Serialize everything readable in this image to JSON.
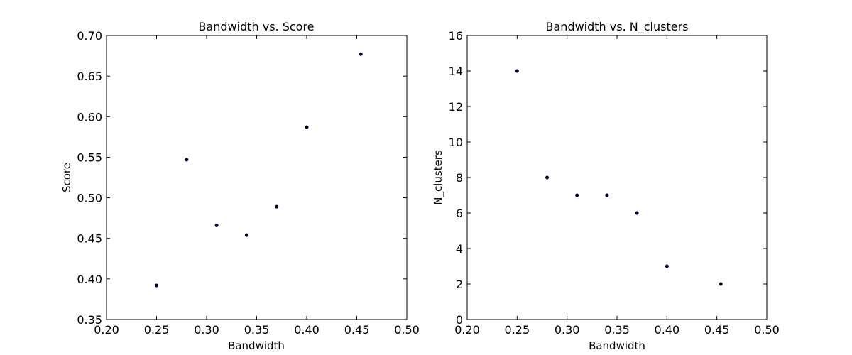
{
  "chart_data": [
    {
      "type": "scatter",
      "title": "Bandwidth vs. Score",
      "xlabel": "Bandwidth",
      "ylabel": "Score",
      "xlim": [
        0.2,
        0.5
      ],
      "ylim": [
        0.35,
        0.7
      ],
      "xticks": [
        "0.20",
        "0.25",
        "0.30",
        "0.35",
        "0.40",
        "0.45",
        "0.50"
      ],
      "yticks": [
        "0.35",
        "0.40",
        "0.45",
        "0.50",
        "0.55",
        "0.60",
        "0.65",
        "0.70"
      ],
      "grid": false,
      "marker_color": "#000033",
      "series": [
        {
          "x": [
            0.25,
            0.28,
            0.31,
            0.34,
            0.37,
            0.4,
            0.454
          ],
          "y": [
            0.392,
            0.547,
            0.466,
            0.454,
            0.489,
            0.587,
            0.677
          ]
        }
      ]
    },
    {
      "type": "scatter",
      "title": "Bandwidth vs. N_clusters",
      "xlabel": "Bandwidth",
      "ylabel": "N_clusters",
      "xlim": [
        0.2,
        0.5
      ],
      "ylim": [
        0,
        16
      ],
      "xticks": [
        "0.20",
        "0.25",
        "0.30",
        "0.35",
        "0.40",
        "0.45",
        "0.50"
      ],
      "yticks": [
        "0",
        "2",
        "4",
        "6",
        "8",
        "10",
        "12",
        "14",
        "16"
      ],
      "grid": false,
      "marker_color": "#000033",
      "series": [
        {
          "x": [
            0.25,
            0.28,
            0.31,
            0.34,
            0.37,
            0.4,
            0.454
          ],
          "y": [
            14,
            8,
            7,
            7,
            6,
            3,
            2
          ]
        }
      ]
    }
  ]
}
